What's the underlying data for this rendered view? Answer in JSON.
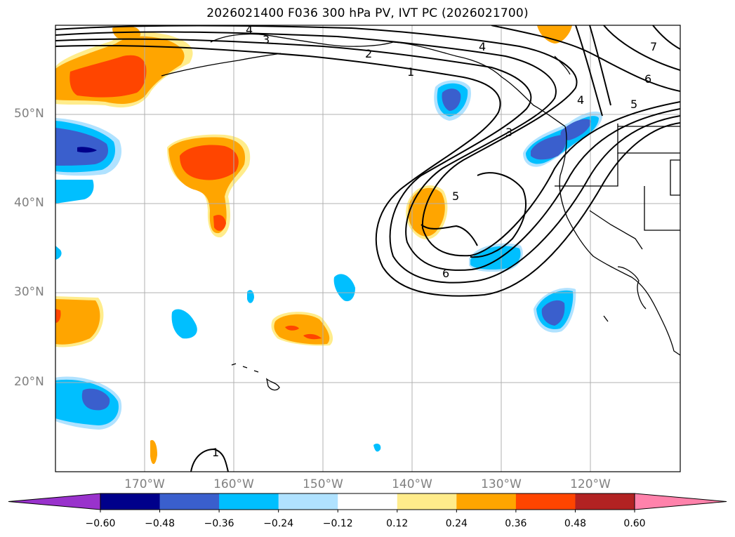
{
  "title": "2026021400 F036 300 hPa PV, IVT PC (2026021700)",
  "lat_labels": [
    "50°N",
    "40°N",
    "30°N",
    "20°N"
  ],
  "lon_labels": [
    "170°W",
    "160°W",
    "150°W",
    "140°W",
    "130°W",
    "120°W"
  ],
  "colorbar": {
    "ticks": [
      "−0.60",
      "−0.48",
      "−0.36",
      "−0.24",
      "−0.12",
      "0.12",
      "0.24",
      "0.36",
      "0.48",
      "0.60"
    ],
    "colors": [
      "#9932cc",
      "#00008b",
      "#3a5fcd",
      "#00bfff",
      "#b0e2ff",
      "#ffffff",
      "#ffec8b",
      "#ffa500",
      "#ff4500",
      "#b22222",
      "#ff82ab"
    ]
  },
  "contour_labels": [
    "1",
    "2",
    "3",
    "4",
    "5",
    "6",
    "7"
  ],
  "map_extent": {
    "lon": [
      -180,
      -110
    ],
    "lat": [
      10,
      60
    ]
  }
}
